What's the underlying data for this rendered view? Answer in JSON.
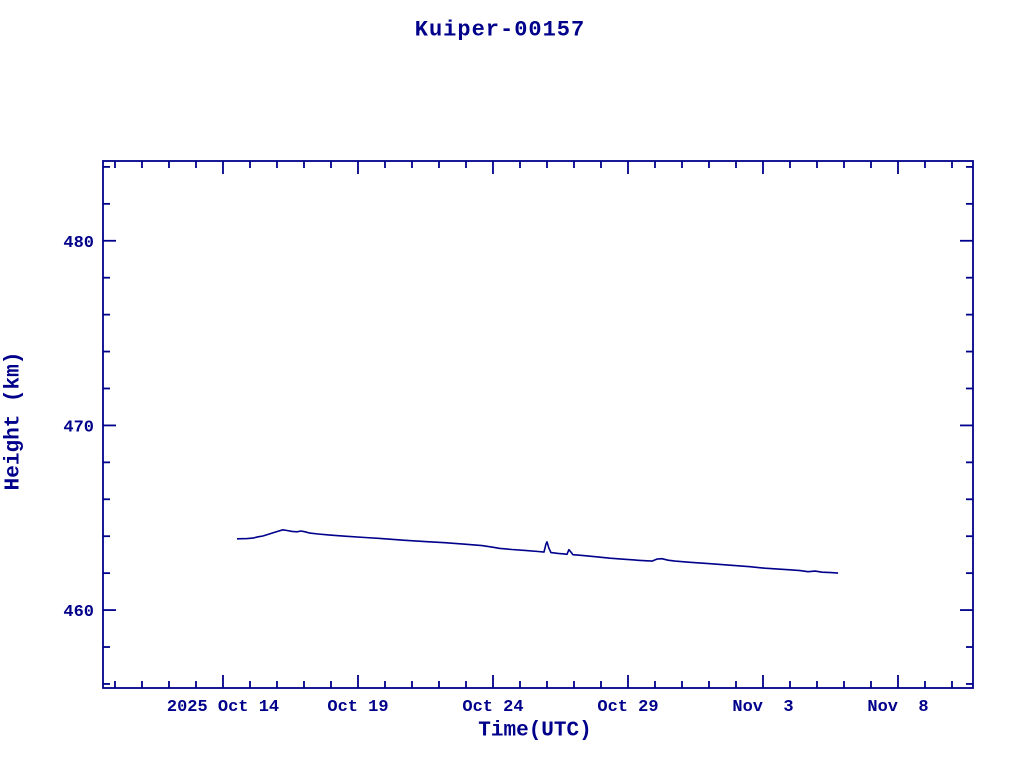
{
  "window": {
    "background": "#ffffff"
  },
  "colors": {
    "ink": "#00008B",
    "line": "#00008B"
  },
  "chart_data": {
    "type": "line",
    "title": "Kuiper-00157",
    "xlabel": "Time(UTC)",
    "ylabel": "Height (km)",
    "grid": false,
    "legend": null,
    "x_axis": {
      "unit": "days relative to 2025 Oct 14 00:00 UTC",
      "lim": [
        -4.444,
        27.778
      ],
      "major_ticks": [
        {
          "t": 0,
          "label": "2025 Oct 14"
        },
        {
          "t": 5,
          "label": "Oct 19"
        },
        {
          "t": 10,
          "label": "Oct 24"
        },
        {
          "t": 15,
          "label": "Oct 29"
        },
        {
          "t": 20,
          "label": "Nov  3"
        },
        {
          "t": 25,
          "label": "Nov  8"
        }
      ],
      "minor_step": 1
    },
    "y_axis": {
      "unit": "km",
      "lim": [
        455.78,
        484.32
      ],
      "major_ticks": [
        {
          "v": 460,
          "label": "460"
        },
        {
          "v": 470,
          "label": "470"
        },
        {
          "v": 480,
          "label": "480"
        }
      ],
      "minor_step": 2
    },
    "series": [
      {
        "name": "height",
        "points": [
          [
            0.52,
            463.86
          ],
          [
            0.89,
            463.87
          ],
          [
            1.11,
            463.9
          ],
          [
            1.3,
            463.97
          ],
          [
            1.48,
            464.01
          ],
          [
            1.67,
            464.1
          ],
          [
            1.89,
            464.2
          ],
          [
            2.07,
            464.28
          ],
          [
            2.22,
            464.35
          ],
          [
            2.37,
            464.31
          ],
          [
            2.56,
            464.26
          ],
          [
            2.74,
            464.24
          ],
          [
            2.89,
            464.28
          ],
          [
            3.04,
            464.24
          ],
          [
            3.22,
            464.17
          ],
          [
            3.52,
            464.12
          ],
          [
            3.96,
            464.06
          ],
          [
            4.52,
            464.0
          ],
          [
            5.26,
            463.93
          ],
          [
            6.0,
            463.86
          ],
          [
            6.74,
            463.78
          ],
          [
            7.48,
            463.71
          ],
          [
            8.22,
            463.65
          ],
          [
            8.96,
            463.57
          ],
          [
            9.59,
            463.49
          ],
          [
            9.96,
            463.41
          ],
          [
            10.26,
            463.34
          ],
          [
            10.7,
            463.28
          ],
          [
            11.19,
            463.23
          ],
          [
            11.67,
            463.17
          ],
          [
            11.89,
            463.14
          ],
          [
            11.96,
            463.57
          ],
          [
            12.0,
            463.7
          ],
          [
            12.07,
            463.35
          ],
          [
            12.15,
            463.11
          ],
          [
            12.41,
            463.07
          ],
          [
            12.63,
            463.04
          ],
          [
            12.74,
            463.02
          ],
          [
            12.81,
            463.27
          ],
          [
            12.89,
            463.14
          ],
          [
            12.96,
            463.0
          ],
          [
            13.3,
            462.96
          ],
          [
            13.78,
            462.89
          ],
          [
            14.33,
            462.81
          ],
          [
            14.89,
            462.75
          ],
          [
            15.44,
            462.69
          ],
          [
            15.89,
            462.65
          ],
          [
            16.07,
            462.76
          ],
          [
            16.26,
            462.78
          ],
          [
            16.48,
            462.7
          ],
          [
            16.74,
            462.65
          ],
          [
            17.3,
            462.59
          ],
          [
            18.04,
            462.51
          ],
          [
            18.78,
            462.43
          ],
          [
            19.52,
            462.35
          ],
          [
            20.07,
            462.27
          ],
          [
            20.56,
            462.22
          ],
          [
            21.0,
            462.18
          ],
          [
            21.37,
            462.14
          ],
          [
            21.67,
            462.08
          ],
          [
            21.93,
            462.11
          ],
          [
            22.19,
            462.05
          ],
          [
            22.52,
            462.03
          ],
          [
            22.78,
            462.0
          ]
        ]
      }
    ]
  }
}
